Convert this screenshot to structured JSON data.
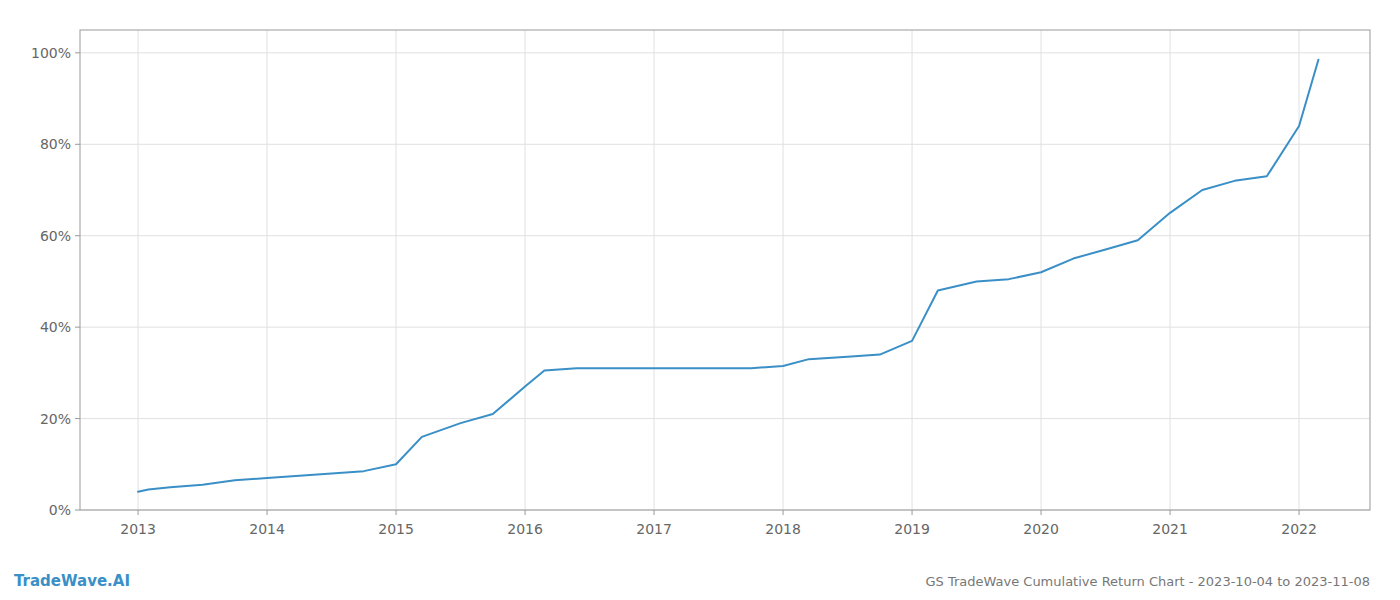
{
  "chart_data": {
    "type": "line",
    "title": "GS TradeWave Cumulative Return Chart - 2023-10-04 to 2023-11-08",
    "annotations": [
      "TradeWave.AI"
    ],
    "x": [
      2013.0,
      2013.08,
      2013.25,
      2013.5,
      2013.75,
      2014.0,
      2014.25,
      2014.5,
      2014.75,
      2015.0,
      2015.2,
      2015.5,
      2015.75,
      2016.0,
      2016.15,
      2016.4,
      2016.6,
      2016.75,
      2017.0,
      2017.25,
      2017.5,
      2017.75,
      2018.0,
      2018.2,
      2018.5,
      2018.75,
      2019.0,
      2019.2,
      2019.5,
      2019.75,
      2020.0,
      2020.25,
      2020.5,
      2020.75,
      2021.0,
      2021.25,
      2021.5,
      2021.75,
      2022.0,
      2022.15
    ],
    "values": [
      4.0,
      4.5,
      5.0,
      5.5,
      6.5,
      7.0,
      7.5,
      8.0,
      8.5,
      10.0,
      16.0,
      19.0,
      21.0,
      27.0,
      30.5,
      31.0,
      31.0,
      31.0,
      31.0,
      31.0,
      31.0,
      31.0,
      31.5,
      33.0,
      33.5,
      34.0,
      37.0,
      48.0,
      50.0,
      50.5,
      52.0,
      55.0,
      57.0,
      59.0,
      65.0,
      70.0,
      72.0,
      73.0,
      84.0,
      98.5
    ],
    "color": "#3a8fc7",
    "xlim": [
      2012.55,
      2022.55
    ],
    "xticks": [
      2013,
      2014,
      2015,
      2016,
      2017,
      2018,
      2019,
      2020,
      2021,
      2022
    ],
    "ylim": [
      0,
      105
    ],
    "yticks": [
      {
        "value": 0,
        "label": "0%"
      },
      {
        "value": 20,
        "label": "20%"
      },
      {
        "value": 40,
        "label": "40%"
      },
      {
        "value": 60,
        "label": "60%"
      },
      {
        "value": 80,
        "label": "80%"
      },
      {
        "value": 100,
        "label": "100%"
      }
    ],
    "grid": true
  }
}
